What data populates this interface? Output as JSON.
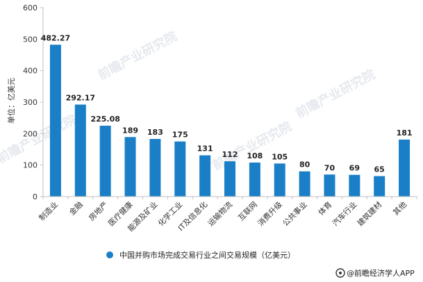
{
  "chart_data": {
    "type": "bar",
    "ylabel": "单位：亿美元",
    "ylim": [
      0,
      600
    ],
    "yticks": [
      0,
      100,
      200,
      300,
      400,
      500,
      600
    ],
    "grid": false,
    "legend_position": "bottom",
    "categories": [
      "制造业",
      "金融",
      "房地产",
      "医疗健康",
      "能源及矿业",
      "化学工业",
      "IT及信息化",
      "运输物流",
      "互联网",
      "消费升级",
      "公共事业",
      "体育",
      "汽车行业",
      "建筑建材",
      "其他"
    ],
    "series": [
      {
        "name": "中国并购市场完成交易行业之间交易规模（亿美元）",
        "values": [
          482.27,
          292.17,
          225.08,
          189,
          183,
          175,
          131,
          112,
          108,
          105,
          80,
          70,
          69,
          65,
          181
        ]
      }
    ],
    "data_labels": [
      "482.27",
      "292.17",
      "225.08",
      "189",
      "183",
      "175",
      "131",
      "112",
      "108",
      "105",
      "80",
      "70",
      "69",
      "65",
      "181"
    ],
    "bar_color": "#1a7fc6"
  },
  "watermark": "前瞻产业研究院",
  "credit": {
    "text": "@前瞻经济学人APP",
    "icon": "qianzhan-logo-icon"
  }
}
